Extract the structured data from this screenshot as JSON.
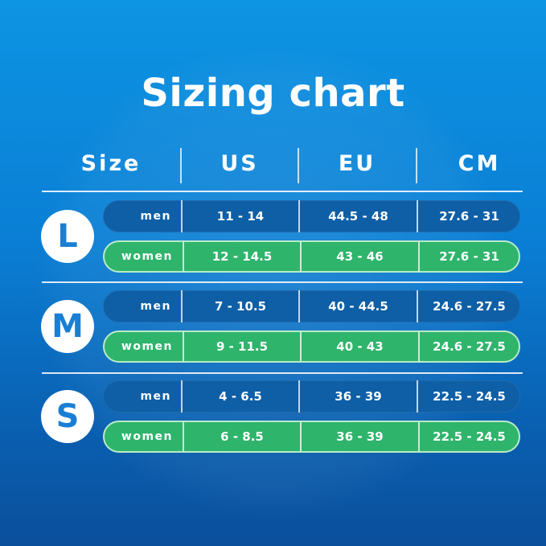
{
  "title": "Sizing chart",
  "headers": [
    "Size",
    "US",
    "EU",
    "CM"
  ],
  "colors": {
    "men_row": "#0e5fa6",
    "women_row": "#2fb46c",
    "circle_text": "#1a7fd4"
  },
  "groups": [
    {
      "size": "L",
      "rows": [
        {
          "label": "men",
          "us": "11 - 14",
          "eu": "44.5 - 48",
          "cm": "27.6 - 31"
        },
        {
          "label": "women",
          "us": "12 - 14.5",
          "eu": "43 - 46",
          "cm": "27.6 - 31"
        }
      ]
    },
    {
      "size": "M",
      "rows": [
        {
          "label": "men",
          "us": "7 - 10.5",
          "eu": "40 - 44.5",
          "cm": "24.6 - 27.5"
        },
        {
          "label": "women",
          "us": "9 - 11.5",
          "eu": "40 - 43",
          "cm": "24.6 - 27.5"
        }
      ]
    },
    {
      "size": "S",
      "rows": [
        {
          "label": "men",
          "us": "4 - 6.5",
          "eu": "36 - 39",
          "cm": "22.5 - 24.5"
        },
        {
          "label": "women",
          "us": "6 - 8.5",
          "eu": "36 - 39",
          "cm": "22.5 - 24.5"
        }
      ]
    }
  ]
}
